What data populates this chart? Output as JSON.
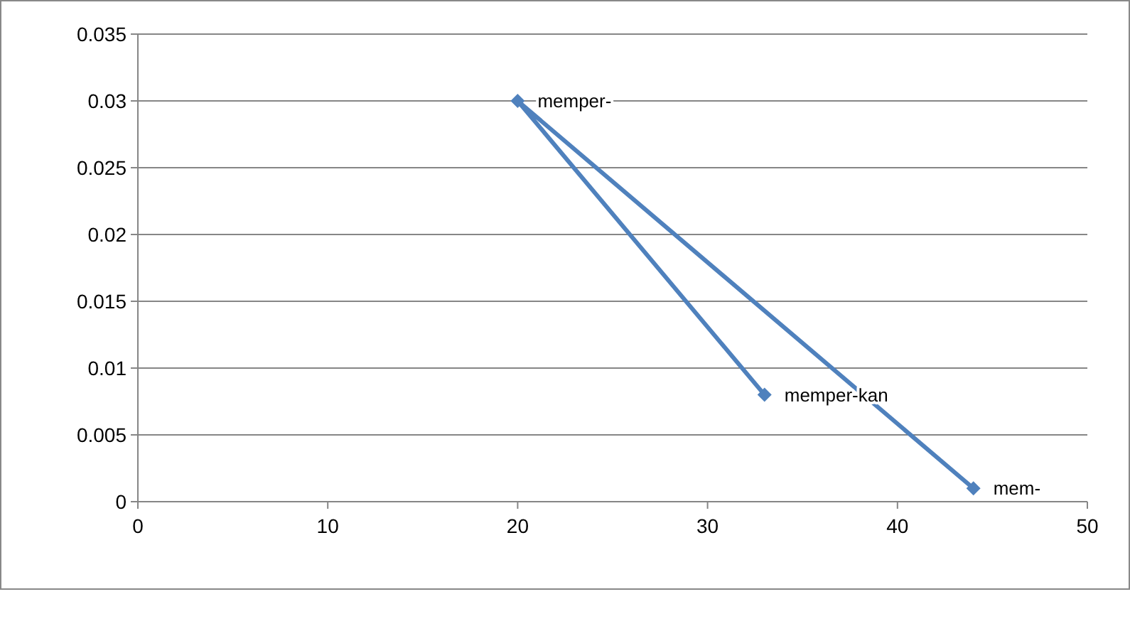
{
  "chart_data": {
    "type": "line",
    "x": [
      44,
      20,
      33
    ],
    "series": [
      {
        "color": "#4f81bd",
        "values": [
          0.001,
          0.03,
          0.008
        ]
      }
    ],
    "xlim": [
      0,
      50
    ],
    "xticks": [
      0,
      10,
      20,
      30,
      40,
      50
    ],
    "ylim": [
      0,
      0.035
    ],
    "yticks": [
      0,
      0.005,
      0.01,
      0.015,
      0.02,
      0.025,
      0.03,
      0.035
    ],
    "grid": "y",
    "marker": "diamond",
    "line_style": "solid",
    "annotations": [
      {
        "text": "mem-",
        "x": 44,
        "y": 0.001
      },
      {
        "text": "memper-",
        "x": 20,
        "y": 0.03
      },
      {
        "text": "memper-kan",
        "x": 33,
        "y": 0.008
      }
    ]
  }
}
